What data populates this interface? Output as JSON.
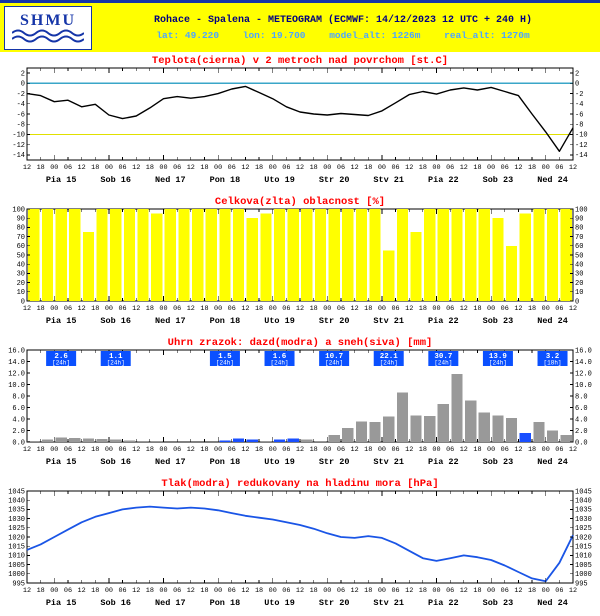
{
  "header": {
    "logo_text": "SHMU",
    "title": "Rohace - Spalena - METEOGRAM (ECMWF: 14/12/2023 12 UTC + 240 H)",
    "lat": "lat: 49.220",
    "lon": "lon: 19.700",
    "model_alt": "model_alt: 1226m",
    "real_alt": "real_alt: 1270m",
    "colors": {
      "background": "#ffff00",
      "title": "#000080",
      "subtitle": "#4da6ff",
      "logo_blue": "#1535a8"
    }
  },
  "x_axis": {
    "n_ticks": 41,
    "step_hours": 6,
    "tick_labels_cycle": [
      "12",
      "18",
      "00",
      "06"
    ],
    "day_labels": [
      "Pia 15",
      "Sob 16",
      "Ned 17",
      "Pon 18",
      "Uto 19",
      "Str 20",
      "Stv 21",
      "Pia 22",
      "Sob 23",
      "Ned 24"
    ]
  },
  "chart_data": [
    {
      "type": "line",
      "title": "Teplota(cierna) v 2 metroch nad povrchom [st.C]",
      "title_color": "#ff0000",
      "ylim": [
        -15,
        3
      ],
      "yticks": [
        "2",
        "0",
        "-2",
        "-4",
        "-6",
        "-8",
        "-10",
        "-12",
        "-14"
      ],
      "line_color": "#000000",
      "line_width": 1.4,
      "reference_lines": [
        {
          "y": 0,
          "color": "#3aa6c8"
        },
        {
          "y": -10,
          "color": "#e0e000"
        }
      ],
      "values": [
        -2.0,
        -2.4,
        -3.6,
        -3.3,
        -4.6,
        -4.1,
        -6.2,
        -6.9,
        -6.4,
        -4.8,
        -3.0,
        -2.6,
        -2.9,
        -2.6,
        -2.0,
        -1.1,
        -0.6,
        -1.8,
        -3.0,
        -4.6,
        -5.6,
        -6.0,
        -6.2,
        -5.9,
        -6.1,
        -6.3,
        -5.4,
        -3.8,
        -2.2,
        -1.6,
        -2.1,
        -1.3,
        -0.9,
        -1.3,
        -0.8,
        -1.6,
        -2.4,
        -6.0,
        -9.5,
        -13.3,
        -8.7
      ]
    },
    {
      "type": "bar",
      "title": "Celkova(zlta) oblacnost [%]",
      "title_color": "#ff0000",
      "ylim": [
        0,
        100
      ],
      "yticks": [
        "100",
        "90",
        "80",
        "70",
        "60",
        "50",
        "40",
        "30",
        "20",
        "10",
        "0"
      ],
      "bar_color": "#ffff00",
      "values": [
        100,
        100,
        100,
        100,
        75,
        100,
        100,
        100,
        100,
        95,
        100,
        100,
        100,
        100,
        100,
        100,
        90,
        95,
        100,
        100,
        100,
        100,
        100,
        100,
        100,
        100,
        55,
        100,
        75,
        100,
        100,
        100,
        100,
        100,
        90,
        60,
        95,
        100,
        100,
        100
      ]
    },
    {
      "type": "bar",
      "title": "Uhrn zrazok: dazd(modra) a sneh(siva) [mm]",
      "title_color": "#ff0000",
      "ylim": [
        0,
        16
      ],
      "yticks": [
        "16.0",
        "14.0",
        "12.0",
        "10.0",
        "8.0",
        "6.0",
        "4.0",
        "2.0",
        "0.0"
      ],
      "colors": {
        "snow": "#999999",
        "rain": "#1a4fff"
      },
      "badge_color": "#0a50ff",
      "bars": [
        {
          "v": 0.2,
          "t": "snow"
        },
        {
          "v": 0.4,
          "t": "snow"
        },
        {
          "v": 0.8,
          "t": "snow"
        },
        {
          "v": 0.7,
          "t": "snow"
        },
        {
          "v": 0.6,
          "t": "snow"
        },
        {
          "v": 0.5,
          "t": "snow"
        },
        {
          "v": 0.4,
          "t": "snow"
        },
        {
          "v": 0.3,
          "t": "snow"
        },
        {
          "v": 0.2,
          "t": "snow"
        },
        {
          "v": 0.2,
          "t": "snow"
        },
        {
          "v": 0,
          "t": "snow"
        },
        {
          "v": 0,
          "t": "snow"
        },
        {
          "v": 0,
          "t": "snow"
        },
        {
          "v": 0,
          "t": "snow"
        },
        {
          "v": 0.3,
          "t": "rain"
        },
        {
          "v": 0.6,
          "t": "rain"
        },
        {
          "v": 0.4,
          "t": "rain"
        },
        {
          "v": 0.2,
          "t": "snow"
        },
        {
          "v": 0.4,
          "t": "rain"
        },
        {
          "v": 0.6,
          "t": "rain"
        },
        {
          "v": 0.4,
          "t": "snow"
        },
        {
          "v": 0.2,
          "t": "snow"
        },
        {
          "v": 1.2,
          "t": "snow"
        },
        {
          "v": 2.4,
          "t": "snow"
        },
        {
          "v": 3.6,
          "t": "snow"
        },
        {
          "v": 3.5,
          "t": "snow"
        },
        {
          "v": 4.4,
          "t": "snow"
        },
        {
          "v": 8.6,
          "t": "snow"
        },
        {
          "v": 4.6,
          "t": "snow"
        },
        {
          "v": 4.5,
          "t": "snow"
        },
        {
          "v": 6.6,
          "t": "snow"
        },
        {
          "v": 11.8,
          "t": "snow"
        },
        {
          "v": 7.2,
          "t": "snow"
        },
        {
          "v": 5.1,
          "t": "snow"
        },
        {
          "v": 4.6,
          "t": "snow"
        },
        {
          "v": 4.2,
          "t": "snow"
        },
        {
          "v": 1.6,
          "t": "rain"
        },
        {
          "v": 3.5,
          "t": "snow"
        },
        {
          "v": 2.0,
          "t": "snow"
        },
        {
          "v": 1.2,
          "t": "snow"
        }
      ],
      "daily_totals": [
        {
          "value": "2.6",
          "period": "[24h]",
          "day": 0
        },
        {
          "value": "1.1",
          "period": "[24h]",
          "day": 1
        },
        {
          "value": "1.5",
          "period": "[24h]",
          "day": 3
        },
        {
          "value": "1.6",
          "period": "[24h]",
          "day": 4
        },
        {
          "value": "10.7",
          "period": "[24h]",
          "day": 5
        },
        {
          "value": "22.1",
          "period": "[24h]",
          "day": 6
        },
        {
          "value": "30.7",
          "period": "[24h]",
          "day": 7
        },
        {
          "value": "13.9",
          "period": "[24h]",
          "day": 8
        },
        {
          "value": "3.2",
          "period": "[18h]",
          "day": 9
        }
      ]
    },
    {
      "type": "line",
      "title": "Tlak(modra) redukovany na hladinu mora [hPa]",
      "title_color": "#ff0000",
      "ylim": [
        995,
        1045
      ],
      "yticks": [
        "1045",
        "1040",
        "1035",
        "1030",
        "1025",
        "1020",
        "1015",
        "1010",
        "1005",
        "1000",
        "995"
      ],
      "line_color": "#1a55e6",
      "line_width": 1.8,
      "values": [
        1013,
        1016,
        1020,
        1024,
        1028,
        1031,
        1033,
        1035,
        1036,
        1036.5,
        1036,
        1035.5,
        1036,
        1035.5,
        1034.5,
        1033,
        1031.5,
        1030.5,
        1029.5,
        1028,
        1026.5,
        1024.5,
        1022,
        1020,
        1019.5,
        1020.5,
        1019.5,
        1016.5,
        1012.5,
        1008.5,
        1007,
        1008.5,
        1010,
        1009,
        1007.5,
        1004.5,
        1001,
        997.5,
        996,
        1006,
        1021
      ]
    }
  ]
}
